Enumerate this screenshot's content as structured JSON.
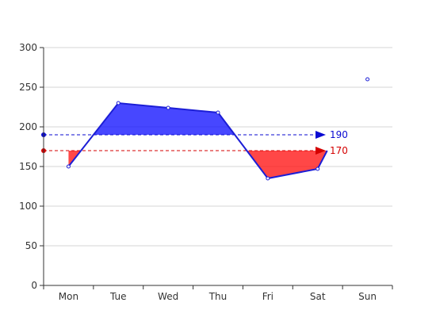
{
  "chart_data": {
    "type": "line",
    "categories": [
      "Mon",
      "Tue",
      "Wed",
      "Thu",
      "Fri",
      "Sat",
      "Sun"
    ],
    "series": [
      {
        "values": [
          150,
          230,
          224,
          218,
          135,
          147,
          260
        ]
      }
    ],
    "ylim": [
      0,
      300
    ],
    "yticks": [
      0,
      50,
      100,
      150,
      200,
      250,
      300
    ],
    "grid": true,
    "line_color": "#1c1ed6",
    "mark_lines": [
      {
        "value": 190,
        "label": "190",
        "color": "#0a0ad2",
        "fill": "#0000ff"
      },
      {
        "value": 170,
        "label": "170",
        "color": "#d40000",
        "fill": "#ff0000"
      }
    ]
  }
}
